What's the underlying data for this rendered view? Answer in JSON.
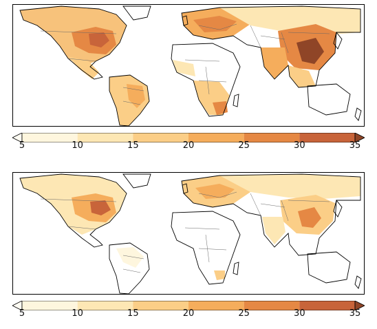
{
  "panels": [
    {
      "id": "top",
      "colorbar": {
        "ticks": [
          "5",
          "10",
          "15",
          "20",
          "25",
          "30",
          "35"
        ]
      }
    },
    {
      "id": "bottom",
      "colorbar": {
        "ticks": [
          "5",
          "10",
          "15",
          "20",
          "25",
          "30",
          "35"
        ]
      }
    }
  ],
  "colorscale": {
    "min": 5,
    "max": 35,
    "extend": "both",
    "colors": [
      "#fef6de",
      "#fde7b4",
      "#fbce87",
      "#f5ad5c",
      "#e58844",
      "#c8643a",
      "#8f4527"
    ],
    "boundaries": [
      5,
      10,
      15,
      20,
      25,
      30,
      35
    ]
  },
  "map_style": {
    "land_outline": "#000000",
    "border": "#666666",
    "ocean": "#ffffff"
  }
}
